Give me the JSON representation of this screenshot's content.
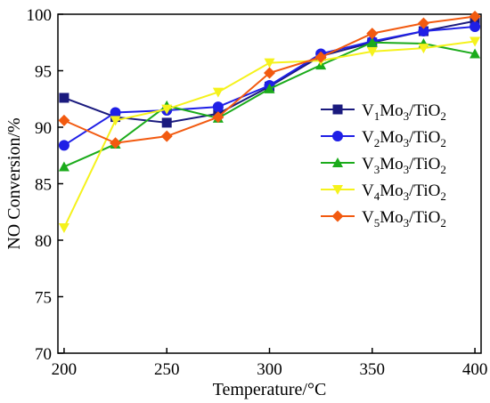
{
  "chart_data": {
    "type": "line",
    "xlabel": "Temperature/°C",
    "ylabel": "NO Conversion/%",
    "xlim": [
      197,
      403
    ],
    "ylim": [
      70,
      100
    ],
    "x_ticks": [
      200,
      250,
      300,
      350,
      400
    ],
    "y_ticks": [
      70,
      75,
      80,
      85,
      90,
      95,
      100
    ],
    "x_tick_labels": [
      "200",
      "250",
      "300",
      "350",
      "400"
    ],
    "y_tick_labels": [
      "70",
      "75",
      "80",
      "85",
      "90",
      "95",
      "100"
    ],
    "grid": false,
    "legend_position": "right",
    "x": [
      200,
      225,
      250,
      275,
      300,
      325,
      350,
      375,
      400
    ],
    "series": [
      {
        "name": "V1Mo3/TiO2",
        "name_parts": {
          "a": "V",
          "a_sub": "1",
          "b": "Mo",
          "b_sub": "3",
          "c": "/TiO",
          "c_sub": "2"
        },
        "color": "#1a1a7e",
        "marker": "square",
        "values": [
          92.6,
          90.9,
          90.4,
          91.2,
          93.6,
          96.3,
          97.5,
          98.5,
          99.4
        ]
      },
      {
        "name": "V2Mo3/TiO2",
        "name_parts": {
          "a": "V",
          "a_sub": "2",
          "b": "Mo",
          "b_sub": "3",
          "c": "/TiO",
          "c_sub": "2"
        },
        "color": "#1f1fe6",
        "marker": "circle",
        "values": [
          88.4,
          91.3,
          91.5,
          91.8,
          93.7,
          96.5,
          97.6,
          98.5,
          98.9
        ]
      },
      {
        "name": "V3Mo3/TiO2",
        "name_parts": {
          "a": "V",
          "a_sub": "3",
          "b": "Mo",
          "b_sub": "3",
          "c": "/TiO",
          "c_sub": "2"
        },
        "color": "#1bab1b",
        "marker": "triangle-up",
        "values": [
          86.5,
          88.5,
          91.9,
          90.8,
          93.4,
          95.5,
          97.5,
          97.4,
          96.5
        ]
      },
      {
        "name": "V4Mo3/TiO2",
        "name_parts": {
          "a": "V",
          "a_sub": "4",
          "b": "Mo",
          "b_sub": "3",
          "c": "/TiO",
          "c_sub": "2"
        },
        "color": "#f5f21c",
        "marker": "triangle-down",
        "values": [
          81.1,
          90.6,
          91.6,
          93.1,
          95.7,
          95.9,
          96.7,
          97.0,
          97.6
        ]
      },
      {
        "name": "V5Mo3/TiO2",
        "name_parts": {
          "a": "V",
          "a_sub": "5",
          "b": "Mo",
          "b_sub": "3",
          "c": "/TiO",
          "c_sub": "2"
        },
        "color": "#f25a10",
        "marker": "diamond",
        "values": [
          90.6,
          88.6,
          89.2,
          90.9,
          94.8,
          96.2,
          98.3,
          99.2,
          99.8
        ]
      }
    ]
  }
}
